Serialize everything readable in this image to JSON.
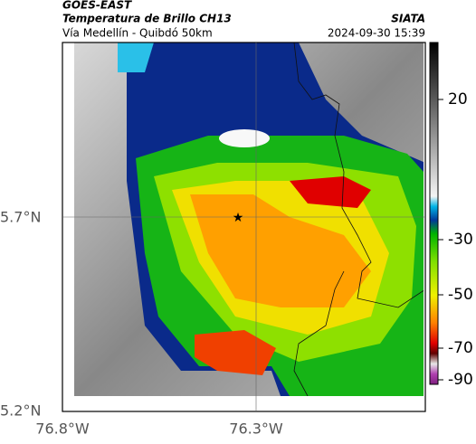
{
  "header": {
    "agency": "GOES-EAST",
    "title": "Temperatura de Brillo CH13",
    "subtitle": "Vía Medellín - Quibdó 50km",
    "source": "SIATA",
    "datetime": "2024-09-30 15:39"
  },
  "map": {
    "lat_ticks": [
      "5.7°N",
      "5.2°N"
    ],
    "lon_ticks": [
      "76.8°W",
      "76.3°W"
    ]
  },
  "colorbar": {
    "ticks": [
      "20",
      "-30",
      "-50",
      "-70",
      "-90"
    ]
  }
}
